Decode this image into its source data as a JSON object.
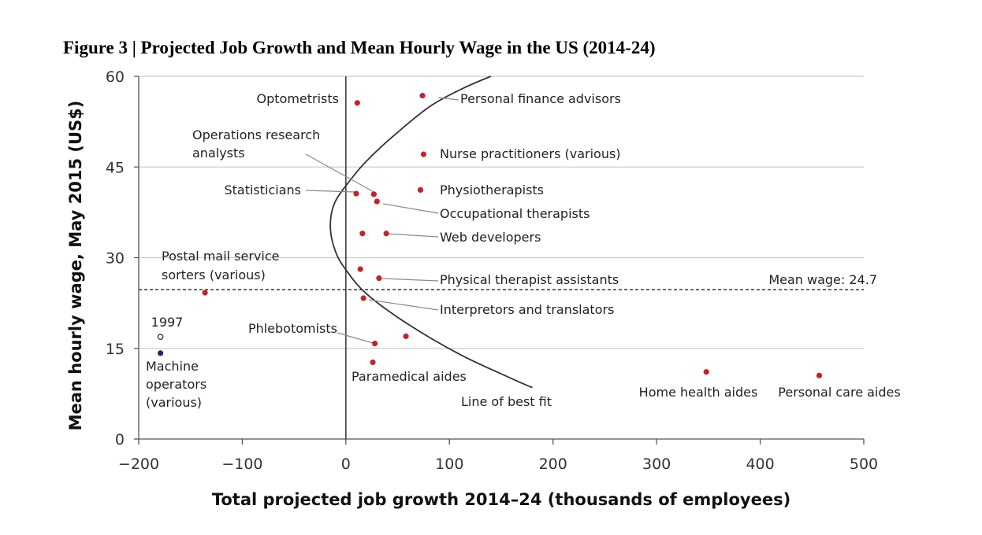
{
  "figure_title": "Figure 3 | Projected Job Growth and Mean Hourly Wage in the US (2014-24)",
  "chart_data": {
    "type": "scatter",
    "title": "Figure 3 | Projected Job Growth and Mean Hourly Wage in the US (2014-24)",
    "xlabel": "Total projected job growth 2014–24 (thousands of employees)",
    "ylabel": "Mean hourly wage, May 2015 (US$)",
    "xlim": [
      -200,
      500
    ],
    "ylim": [
      0,
      60
    ],
    "x_ticks": [
      -200,
      -100,
      0,
      100,
      200,
      300,
      400,
      500
    ],
    "x_tick_labels": [
      "−200",
      "−100",
      "0",
      "100",
      "200",
      "300",
      "400",
      "500"
    ],
    "y_ticks": [
      0,
      15,
      30,
      45,
      60
    ],
    "y_tick_labels": [
      "0",
      "15",
      "30",
      "45",
      "60"
    ],
    "grid": "horizontal",
    "colors": {
      "point": "#c8202a",
      "point_1997": "#1f2a6b",
      "mean_line": "#333333",
      "fit_line": "#333333",
      "grid": "#cccccc"
    },
    "mean_wage": {
      "value": 24.7,
      "label": "Mean wage: 24.7"
    },
    "best_fit": {
      "label": "Line of best fit",
      "x": [
        140,
        113,
        81,
        45,
        20,
        5,
        -11,
        -15,
        -10,
        0,
        20,
        60,
        110,
        160,
        180
      ],
      "y": [
        60,
        58,
        55,
        50,
        46,
        43,
        39,
        35,
        31,
        28,
        24,
        19,
        14,
        10,
        8.5
      ]
    },
    "points": [
      {
        "name": "Optometrists",
        "x": 11,
        "y": 55.6
      },
      {
        "name": "Personal finance advisors",
        "x": 74,
        "y": 56.8
      },
      {
        "name": "Nurse practitioners (various)",
        "x": 75,
        "y": 47.1
      },
      {
        "name": "Operations research analysts",
        "x": 27,
        "y": 40.5
      },
      {
        "name": "Statisticians",
        "x": 10,
        "y": 40.6
      },
      {
        "name": "Physiotherapists",
        "x": 72,
        "y": 41.2
      },
      {
        "name": "Occupational therapists",
        "x": 30,
        "y": 39.3
      },
      {
        "name": "",
        "x": 16,
        "y": 34
      },
      {
        "name": "Web developers",
        "x": 39,
        "y": 34
      },
      {
        "name": "",
        "x": 14,
        "y": 28.1
      },
      {
        "name": "Physical therapist assistants",
        "x": 32,
        "y": 26.6
      },
      {
        "name": "Postal mail service sorters (various)",
        "x": -136,
        "y": 24.2
      },
      {
        "name": "Interpretors and translators",
        "x": 17,
        "y": 23.3
      },
      {
        "name": "",
        "x": 58,
        "y": 17
      },
      {
        "name": "Phlebotomists",
        "x": 28,
        "y": 15.8
      },
      {
        "name": "Paramedical aides",
        "x": 26,
        "y": 12.7
      },
      {
        "name": "Home health aides",
        "x": 348,
        "y": 11.1
      },
      {
        "name": "Personal care aides",
        "x": 457,
        "y": 10.5
      },
      {
        "name": "Machine operators (various)",
        "x": -179,
        "y": 14.2
      }
    ],
    "point_1997": {
      "label": "1997",
      "x": -179,
      "y": 16.9
    },
    "labels": [
      {
        "text": "Optometrists",
        "at": "optometrists"
      },
      {
        "text": "Personal finance advisors",
        "at": "personal-finance"
      },
      {
        "text": "Operations research",
        "at": "ops-research-1"
      },
      {
        "text": "analysts",
        "at": "ops-research-2"
      },
      {
        "text": "Nurse practitioners (various)",
        "at": "nurse"
      },
      {
        "text": "Statisticians",
        "at": "statisticians"
      },
      {
        "text": "Physiotherapists",
        "at": "physio"
      },
      {
        "text": "Occupational therapists",
        "at": "occupational"
      },
      {
        "text": "Web developers",
        "at": "web"
      },
      {
        "text": "Postal mail service",
        "at": "postal-1"
      },
      {
        "text": "sorters (various)",
        "at": "postal-2"
      },
      {
        "text": "Physical therapist assistants",
        "at": "pt-assistants"
      },
      {
        "text": "Interpretors and translators",
        "at": "interpreters"
      },
      {
        "text": "1997",
        "at": "y1997"
      },
      {
        "text": "Phlebotomists",
        "at": "phlebotomists"
      },
      {
        "text": "Machine",
        "at": "machine-1"
      },
      {
        "text": "operators",
        "at": "machine-2"
      },
      {
        "text": "(various)",
        "at": "machine-3"
      },
      {
        "text": "Paramedical aides",
        "at": "paramedical"
      },
      {
        "text": "Line of best fit",
        "at": "fit"
      },
      {
        "text": "Home health aides",
        "at": "home-health"
      },
      {
        "text": "Personal care aides",
        "at": "personal-care"
      },
      {
        "text": "Mean wage: 24.7",
        "at": "mean"
      }
    ]
  }
}
